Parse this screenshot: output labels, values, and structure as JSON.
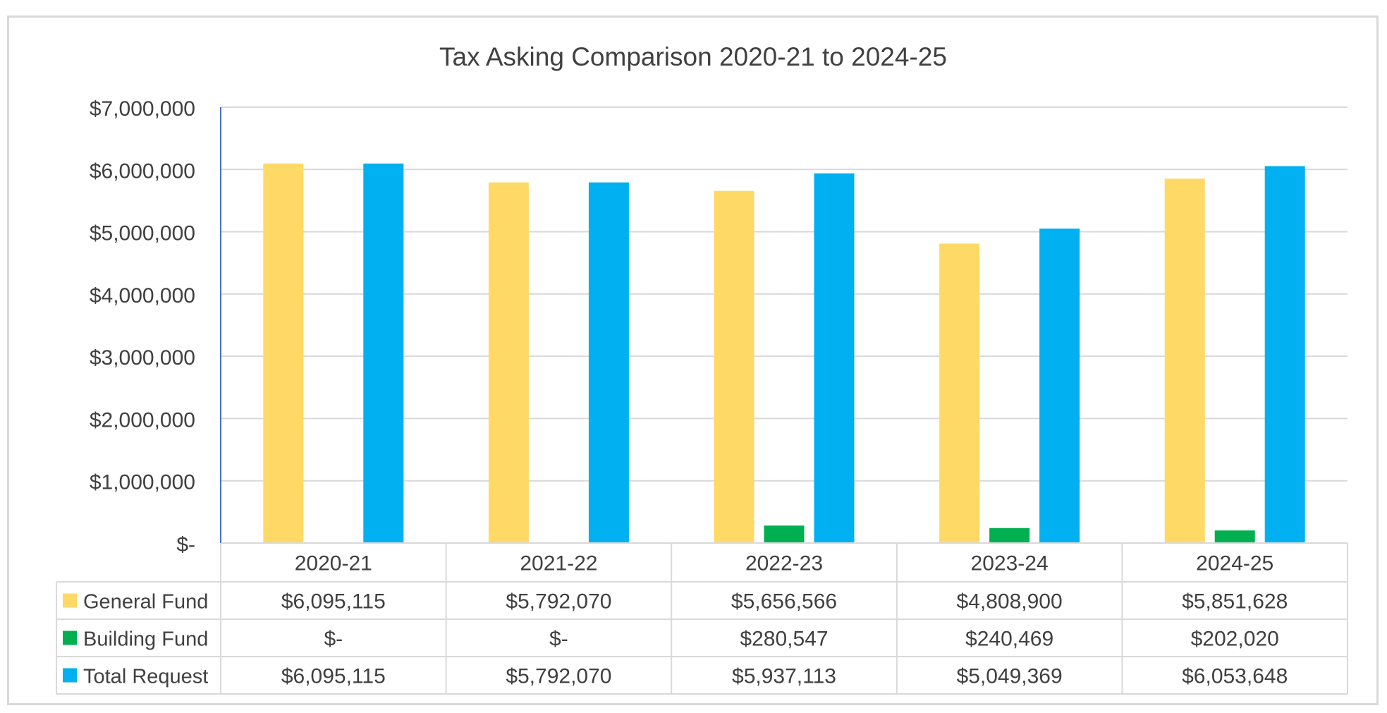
{
  "chart_data": {
    "type": "bar",
    "title": "Tax Asking Comparison 2020-21 to 2024-25",
    "categories": [
      "2020-21",
      "2021-22",
      "2022-23",
      "2023-24",
      "2024-25"
    ],
    "ylim": [
      0,
      7000000
    ],
    "y_ticks": [
      0,
      1000000,
      2000000,
      3000000,
      4000000,
      5000000,
      6000000,
      7000000
    ],
    "y_tick_labels": [
      "$-",
      "$1,000,000",
      "$2,000,000",
      "$3,000,000",
      "$4,000,000",
      "$5,000,000",
      "$6,000,000",
      "$7,000,000"
    ],
    "grid": true,
    "legend": "data-table",
    "series": [
      {
        "name": "General Fund",
        "color": "#FFD966",
        "values": [
          6095115,
          5792070,
          5656566,
          4808900,
          5851628
        ],
        "labels": [
          "$6,095,115",
          "$5,792,070",
          "$5,656,566",
          "$4,808,900",
          "$5,851,628"
        ]
      },
      {
        "name": "Building Fund",
        "color": "#00B050",
        "values": [
          0,
          0,
          280547,
          240469,
          202020
        ],
        "labels": [
          "$-",
          "$-",
          "$280,547",
          "$240,469",
          "$202,020"
        ]
      },
      {
        "name": "Total Request",
        "color": "#00B0F0",
        "values": [
          6095115,
          5792070,
          5937113,
          5049369,
          6053648
        ],
        "labels": [
          "$6,095,115",
          "$5,792,070",
          "$5,937,113",
          "$5,049,369",
          "$6,053,648"
        ]
      }
    ]
  }
}
